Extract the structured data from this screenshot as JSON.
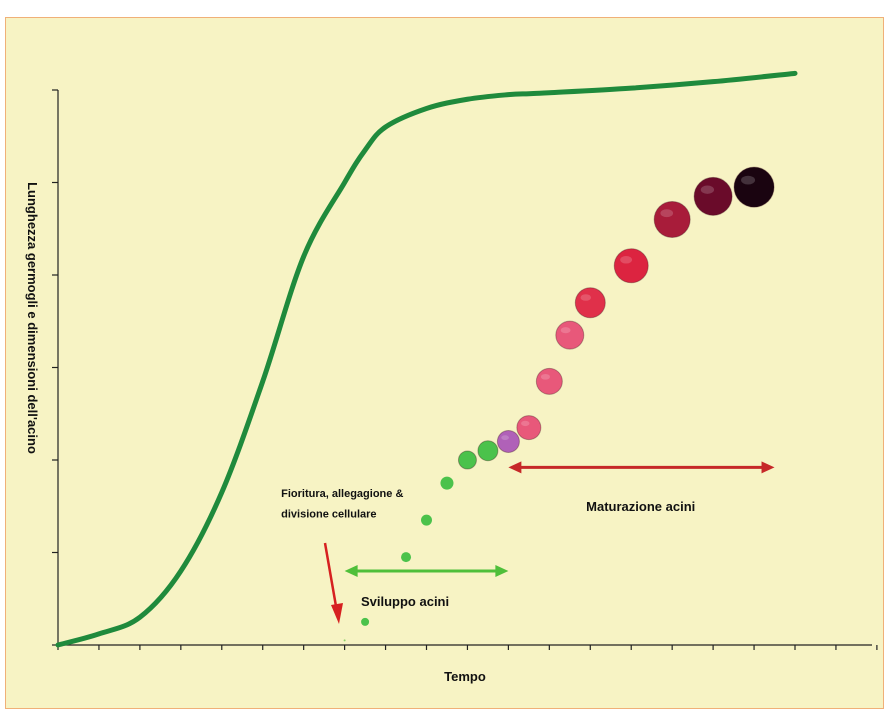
{
  "chart_data": {
    "type": "line",
    "title": "",
    "xlabel": "Tempo",
    "ylabel": "Lunghezza germogli e dimensioni dell'acino",
    "grid": false,
    "xlim": [
      0,
      18
    ],
    "ylim": [
      0,
      6
    ],
    "series": [
      {
        "name": "",
        "color": "#1f8a3c",
        "x": [
          0,
          1,
          2,
          3,
          4,
          5,
          6,
          7,
          7.5,
          8,
          9,
          10,
          11,
          11.5,
          12,
          14,
          16,
          18
        ],
        "y": [
          0,
          0.12,
          0.3,
          0.8,
          1.65,
          2.85,
          4.2,
          5.0,
          5.35,
          5.6,
          5.8,
          5.9,
          5.95,
          5.96,
          5.97,
          6.02,
          6.09,
          6.18
        ]
      }
    ],
    "berries": [
      {
        "x": 7.0,
        "y": 0.05,
        "size": 1,
        "color": "#8fd06a"
      },
      {
        "x": 7.5,
        "y": 0.25,
        "size": 4,
        "color": "#4bc24b"
      },
      {
        "x": 8.5,
        "y": 0.95,
        "size": 5,
        "color": "#4bc24b"
      },
      {
        "x": 9.0,
        "y": 1.35,
        "size": 5.5,
        "color": "#4bc24b"
      },
      {
        "x": 9.5,
        "y": 1.75,
        "size": 6.5,
        "color": "#4bc24b"
      },
      {
        "x": 10.0,
        "y": 2.0,
        "size": 9,
        "color": "#4bc24b"
      },
      {
        "x": 10.5,
        "y": 2.1,
        "size": 10,
        "color": "#4bc24b"
      },
      {
        "x": 11.0,
        "y": 2.2,
        "size": 11,
        "color": "#b061b8"
      },
      {
        "x": 11.5,
        "y": 2.35,
        "size": 12,
        "color": "#e8587a"
      },
      {
        "x": 12.0,
        "y": 2.85,
        "size": 13,
        "color": "#e8587a"
      },
      {
        "x": 12.5,
        "y": 3.35,
        "size": 14,
        "color": "#e8587a"
      },
      {
        "x": 13.0,
        "y": 3.7,
        "size": 15,
        "color": "#e0304a"
      },
      {
        "x": 14.0,
        "y": 4.1,
        "size": 17,
        "color": "#dc2440"
      },
      {
        "x": 15.0,
        "y": 4.6,
        "size": 18,
        "color": "#a81c3a"
      },
      {
        "x": 16.0,
        "y": 4.85,
        "size": 19,
        "color": "#6a0b2a"
      },
      {
        "x": 17.0,
        "y": 4.95,
        "size": 20,
        "color": "#1a0410"
      }
    ],
    "annotations": [
      {
        "text": "Fioritura, allegagione &",
        "x": 5.45,
        "y": 1.6
      },
      {
        "text": "divisione cellulare",
        "x": 5.45,
        "y": 1.38
      },
      {
        "text": "Sviluppo acini",
        "x": 7.4,
        "y": 0.42
      },
      {
        "text": "Maturazione acini",
        "x": 12.9,
        "y": 1.45
      }
    ],
    "arrows": [
      {
        "name": "sviluppo",
        "from": 7.0,
        "to": 11.0,
        "y": 0.8,
        "color": "#4fbf3a"
      },
      {
        "name": "maturazione",
        "from": 11.0,
        "to": 17.5,
        "y": 1.92,
        "color": "#c62828"
      }
    ]
  }
}
